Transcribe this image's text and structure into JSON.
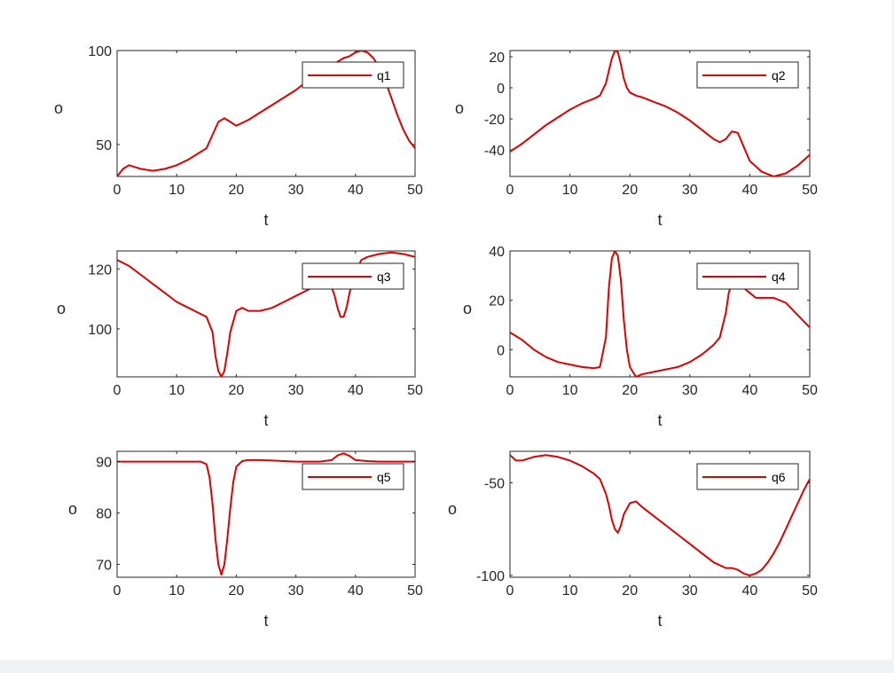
{
  "chart_data": [
    {
      "type": "line",
      "xlabel": "t",
      "ylabel": "o",
      "xlim": [
        0,
        50
      ],
      "xticks": [
        0,
        10,
        20,
        30,
        40,
        50
      ],
      "ylim": [
        33,
        100
      ],
      "yticks": [
        50,
        100
      ],
      "grid": false,
      "legend_position": "top-right",
      "line_color": "#e00000",
      "series": [
        {
          "name": "q1",
          "x": [
            0,
            1,
            2,
            3,
            4,
            6,
            8,
            10,
            12,
            14,
            15,
            16,
            17,
            18,
            19,
            20,
            22,
            24,
            26,
            28,
            30,
            32,
            34,
            36,
            37,
            38,
            39,
            40,
            41,
            42,
            43,
            44,
            45,
            46,
            47,
            48,
            49,
            50
          ],
          "y": [
            33,
            37,
            39,
            38,
            37,
            36,
            37,
            39,
            42,
            46,
            48,
            55,
            62,
            64,
            62,
            60,
            63,
            67,
            71,
            75,
            79,
            84,
            88,
            92,
            94,
            96,
            97,
            99,
            100,
            99,
            96,
            91,
            84,
            75,
            66,
            58,
            52,
            48
          ]
        }
      ]
    },
    {
      "type": "line",
      "xlabel": "t",
      "ylabel": "o",
      "xlim": [
        0,
        50
      ],
      "xticks": [
        0,
        10,
        20,
        30,
        40,
        50
      ],
      "ylim": [
        -57,
        24
      ],
      "yticks": [
        -40,
        -20,
        0,
        20
      ],
      "grid": false,
      "legend_position": "top-right",
      "line_color": "#e00000",
      "series": [
        {
          "name": "q2",
          "x": [
            0,
            2,
            4,
            6,
            8,
            10,
            12,
            14,
            15,
            16,
            16.5,
            17,
            17.5,
            18,
            18.5,
            19,
            19.5,
            20,
            21,
            22,
            24,
            26,
            28,
            30,
            32,
            34,
            35,
            36,
            37,
            38,
            39,
            40,
            42,
            44,
            46,
            48,
            50
          ],
          "y": [
            -41,
            -36,
            -30,
            -24,
            -19,
            -14,
            -10,
            -7,
            -5,
            3,
            11,
            19,
            24,
            23,
            15,
            6,
            0,
            -3,
            -5,
            -6,
            -9,
            -12,
            -16,
            -21,
            -27,
            -33,
            -35,
            -33,
            -28,
            -29,
            -38,
            -47,
            -54,
            -57,
            -55,
            -50,
            -43
          ]
        }
      ]
    },
    {
      "type": "line",
      "xlabel": "t",
      "ylabel": "o",
      "xlim": [
        0,
        50
      ],
      "xticks": [
        0,
        10,
        20,
        30,
        40,
        50
      ],
      "ylim": [
        84,
        126
      ],
      "yticks": [
        100,
        120
      ],
      "grid": false,
      "legend_position": "top-right",
      "line_color": "#e00000",
      "series": [
        {
          "name": "q3",
          "x": [
            0,
            2,
            4,
            6,
            8,
            10,
            12,
            14,
            15,
            16,
            16.5,
            17,
            17.5,
            18,
            18.5,
            19,
            20,
            21,
            22,
            24,
            26,
            28,
            30,
            32,
            34,
            35,
            36,
            36.5,
            37,
            37.5,
            38,
            38.5,
            39,
            40,
            41,
            42,
            44,
            46,
            48,
            50
          ],
          "y": [
            123,
            121,
            118,
            115,
            112,
            109,
            107,
            105,
            104,
            99,
            91,
            86,
            84,
            86,
            92,
            99,
            106,
            107,
            106,
            106,
            107,
            109,
            111,
            113,
            115,
            116,
            114,
            111,
            107,
            104,
            104,
            107,
            112,
            119,
            123,
            124,
            125,
            125.5,
            125,
            124
          ]
        }
      ]
    },
    {
      "type": "line",
      "xlabel": "t",
      "ylabel": "o",
      "xlim": [
        0,
        50
      ],
      "xticks": [
        0,
        10,
        20,
        30,
        40,
        50
      ],
      "ylim": [
        -11,
        40
      ],
      "yticks": [
        0,
        20,
        40
      ],
      "grid": false,
      "legend_position": "top-right",
      "line_color": "#e00000",
      "series": [
        {
          "name": "q4",
          "x": [
            0,
            2,
            4,
            6,
            8,
            10,
            12,
            14,
            15,
            16,
            16.5,
            17,
            17.5,
            18,
            18.5,
            19,
            19.5,
            20,
            21,
            22,
            24,
            26,
            28,
            30,
            32,
            34,
            35,
            36,
            36.5,
            37,
            37.5,
            38,
            38.5,
            39,
            40,
            41,
            42,
            44,
            46,
            48,
            50
          ],
          "y": [
            7,
            4,
            0,
            -3,
            -5,
            -6,
            -7,
            -7.5,
            -7,
            5,
            25,
            37,
            40,
            38,
            28,
            12,
            0,
            -7,
            -11,
            -10,
            -9,
            -8,
            -7,
            -5,
            -2,
            2,
            5,
            15,
            23,
            27,
            28,
            28,
            27,
            25,
            23,
            21,
            21,
            21,
            19,
            14,
            9
          ]
        }
      ]
    },
    {
      "type": "line",
      "xlabel": "t",
      "ylabel": "o",
      "xlim": [
        0,
        50
      ],
      "xticks": [
        0,
        10,
        20,
        30,
        40,
        50
      ],
      "ylim": [
        67.5,
        92
      ],
      "yticks": [
        70,
        80,
        90
      ],
      "grid": false,
      "legend_position": "top-right",
      "line_color": "#e00000",
      "series": [
        {
          "name": "q5",
          "x": [
            0,
            5,
            10,
            14,
            15,
            15.5,
            16,
            16.5,
            17,
            17.5,
            18,
            18.5,
            19,
            19.5,
            20,
            21,
            22,
            24,
            26,
            28,
            30,
            32,
            34,
            36,
            37,
            38,
            39,
            40,
            42,
            44,
            46,
            48,
            50
          ],
          "y": [
            90,
            90,
            90,
            90,
            89.5,
            87,
            82,
            75,
            70,
            68,
            70,
            75,
            81,
            86,
            89,
            90.1,
            90.3,
            90.3,
            90.2,
            90.1,
            90,
            90,
            90,
            90.3,
            91.2,
            91.6,
            91.1,
            90.3,
            90.1,
            90,
            90,
            90,
            90
          ]
        }
      ]
    },
    {
      "type": "line",
      "xlabel": "t",
      "ylabel": "o",
      "xlim": [
        0,
        50
      ],
      "xticks": [
        0,
        10,
        20,
        30,
        40,
        50
      ],
      "ylim": [
        -101,
        -33
      ],
      "yticks": [
        -100,
        -50
      ],
      "grid": false,
      "legend_position": "top-right",
      "line_color": "#e00000",
      "series": [
        {
          "name": "q6",
          "x": [
            0,
            1,
            2,
            4,
            6,
            8,
            10,
            12,
            14,
            15,
            16,
            16.5,
            17,
            17.5,
            18,
            18.5,
            19,
            20,
            21,
            22,
            24,
            26,
            28,
            30,
            32,
            34,
            36,
            37,
            38,
            39,
            40,
            41,
            42,
            43,
            44,
            45,
            46,
            47,
            48,
            49,
            50
          ],
          "y": [
            -35,
            -38,
            -38,
            -36,
            -35,
            -36,
            -38,
            -41,
            -45,
            -48,
            -56,
            -62,
            -70,
            -75,
            -77,
            -73,
            -67,
            -61,
            -60,
            -63,
            -68,
            -73,
            -78,
            -83,
            -88,
            -93,
            -96,
            -96,
            -97,
            -99,
            -100,
            -99,
            -97,
            -93,
            -88,
            -82,
            -75,
            -68,
            -61,
            -54,
            -48
          ]
        }
      ]
    }
  ]
}
